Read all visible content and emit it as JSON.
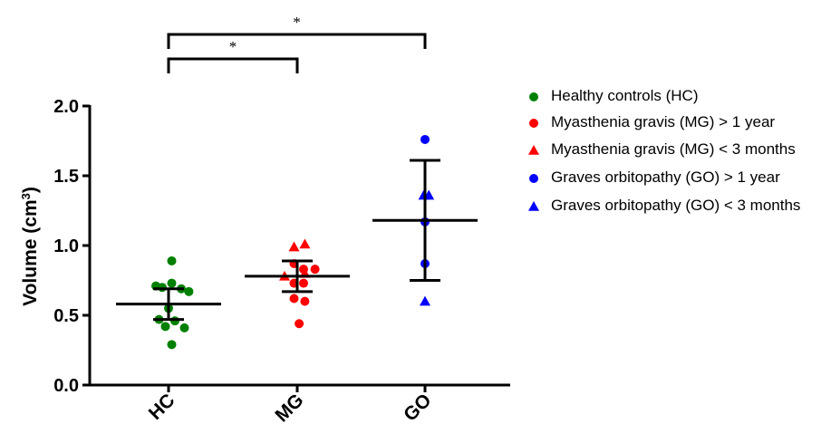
{
  "chart_data": {
    "type": "scatter",
    "ylabel_base": "Volume (cm",
    "ylabel_sup": "3",
    "ylabel_close": ")",
    "ylim": [
      0,
      2.0
    ],
    "yticks": [
      "0.0",
      "0.5",
      "1.0",
      "1.5",
      "2.0"
    ],
    "ytick_values": [
      0,
      0.5,
      1.0,
      1.5,
      2.0
    ],
    "categories": [
      "HC",
      "MG",
      "GO"
    ],
    "legend_position": "right",
    "series": [
      {
        "name": "Healthy controls (HC)",
        "category": "HC",
        "marker": "circle",
        "color": "#008000",
        "points": [
          [
            -0.2,
            0.71
          ],
          [
            -0.1,
            0.7
          ],
          [
            0.05,
            0.89
          ],
          [
            0.05,
            0.73
          ],
          [
            0.2,
            0.69
          ],
          [
            0.32,
            0.67
          ],
          [
            0.0,
            0.55
          ],
          [
            -0.15,
            0.47
          ],
          [
            0.1,
            0.46
          ],
          [
            0.25,
            0.41
          ],
          [
            -0.05,
            0.42
          ],
          [
            0.05,
            0.29
          ]
        ]
      },
      {
        "name": "Myasthenia gravis (MG) > 1 year",
        "category": "MG",
        "marker": "circle",
        "color": "#ff0000",
        "points": [
          [
            -0.05,
            0.87
          ],
          [
            0.1,
            0.83
          ],
          [
            0.28,
            0.83
          ],
          [
            -0.05,
            0.73
          ],
          [
            0.1,
            0.73
          ],
          [
            -0.05,
            0.62
          ],
          [
            0.12,
            0.6
          ],
          [
            0.03,
            0.44
          ]
        ]
      },
      {
        "name": "Myasthenia gravis (MG) < 3 months",
        "category": "MG",
        "marker": "triangle",
        "color": "#ff0000",
        "points": [
          [
            -0.05,
            0.99
          ],
          [
            0.12,
            1.01
          ],
          [
            -0.2,
            0.78
          ],
          [
            0.12,
            0.8
          ]
        ]
      },
      {
        "name": "Graves orbitopathy (GO) > 1 year",
        "category": "GO",
        "marker": "circle",
        "color": "#0000ff",
        "points": [
          [
            0.0,
            1.76
          ],
          [
            0.0,
            1.17
          ],
          [
            0.0,
            0.87
          ]
        ]
      },
      {
        "name": "Graves orbitopathy (GO) < 3 months",
        "category": "GO",
        "marker": "triangle",
        "color": "#0000ff",
        "points": [
          [
            -0.02,
            1.36
          ],
          [
            0.06,
            1.36
          ],
          [
            0.0,
            0.6
          ]
        ]
      }
    ],
    "summary": [
      {
        "category": "HC",
        "mean": 0.58,
        "lower": 0.47,
        "upper": 0.69
      },
      {
        "category": "MG",
        "mean": 0.78,
        "lower": 0.67,
        "upper": 0.89
      },
      {
        "category": "GO",
        "mean": 1.18,
        "lower": 0.75,
        "upper": 1.61
      }
    ],
    "significance": [
      {
        "from": "HC",
        "to": "MG",
        "label": "*"
      },
      {
        "from": "HC",
        "to": "GO",
        "label": "*"
      }
    ]
  }
}
